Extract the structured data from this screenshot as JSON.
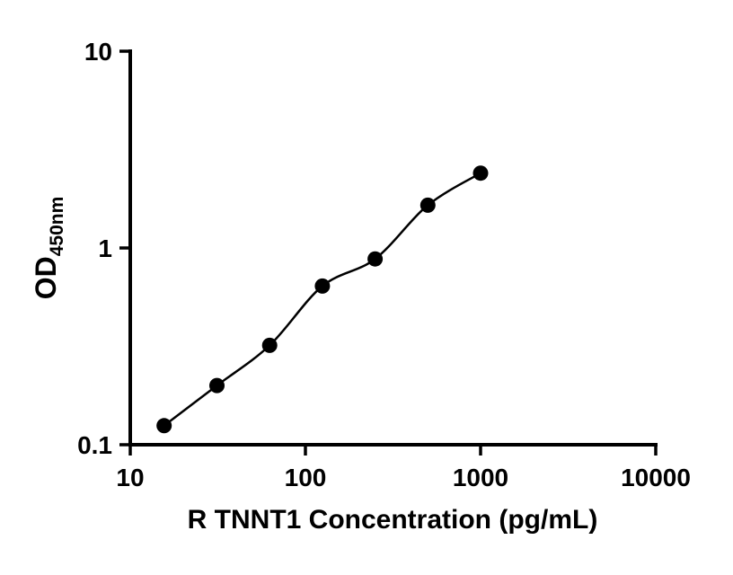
{
  "chart_data": {
    "type": "scatter",
    "title": "",
    "xlabel": "R TNNT1 Concentration (pg/mL)",
    "ylabel_main": "OD",
    "ylabel_sub": "450nm",
    "x_scale": "log",
    "y_scale": "log",
    "xlim": [
      10,
      10000
    ],
    "ylim": [
      0.1,
      10
    ],
    "x_ticks": [
      10,
      100,
      1000,
      10000
    ],
    "x_tick_labels": [
      "10",
      "100",
      "1000",
      "10000"
    ],
    "y_ticks": [
      0.1,
      1,
      10
    ],
    "y_tick_labels": [
      "0.1",
      "1",
      "10"
    ],
    "grid": false,
    "legend": "none",
    "marker_color": "#000000",
    "line_color": "#000000",
    "points": [
      {
        "x": 15.6,
        "y": 0.125
      },
      {
        "x": 31.25,
        "y": 0.2
      },
      {
        "x": 62.5,
        "y": 0.32
      },
      {
        "x": 125,
        "y": 0.64
      },
      {
        "x": 250,
        "y": 0.88
      },
      {
        "x": 500,
        "y": 1.65
      },
      {
        "x": 1000,
        "y": 2.4
      }
    ]
  }
}
